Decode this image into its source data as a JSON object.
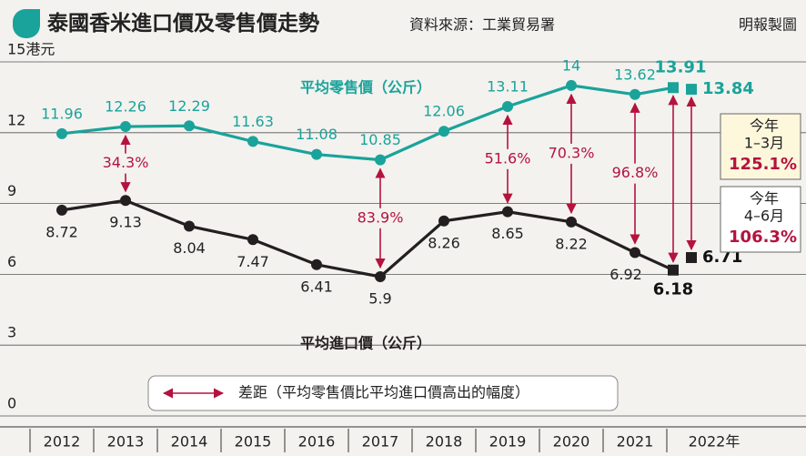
{
  "title": "泰國香米進口價及零售價走勢",
  "source": "資料來源：工業貿易署",
  "credit": "明報製圖",
  "chart_data": {
    "type": "line",
    "categories": [
      "2012",
      "2013",
      "2014",
      "2015",
      "2016",
      "2017",
      "2018",
      "2019",
      "2020",
      "2021",
      "2022年"
    ],
    "ylim": [
      0,
      15
    ],
    "yticks": [
      0,
      3,
      6,
      9,
      12,
      {
        "value": 15,
        "label": "15港元"
      }
    ],
    "series": [
      {
        "name": "平均零售價（公斤）",
        "color": "#1aa39a",
        "values": [
          11.96,
          12.26,
          12.29,
          11.63,
          11.08,
          10.85,
          12.06,
          13.11,
          14,
          13.62,
          null
        ]
      },
      {
        "name": "平均進口價（公斤）",
        "color": "#231f20",
        "values": [
          8.72,
          9.13,
          8.04,
          7.47,
          6.41,
          5.9,
          8.26,
          8.65,
          8.22,
          6.92,
          null
        ]
      }
    ],
    "gap": {
      "name": "差距（平均零售價比平均進口價高出的幅度）",
      "color": "#b5123e",
      "values": [
        null,
        34.3,
        null,
        null,
        null,
        83.9,
        null,
        51.6,
        70.3,
        96.8,
        null
      ],
      "value_labels": [
        null,
        "34.3%",
        null,
        null,
        null,
        "83.9%",
        null,
        "51.6%",
        "70.3%",
        "96.8%",
        null
      ]
    },
    "quarters": [
      {
        "lines": [
          "今年",
          "1–3月"
        ],
        "retail": 13.91,
        "import": 6.18,
        "gap": 125.1,
        "gap_label": "125.1%"
      },
      {
        "lines": [
          "今年",
          "4–6月"
        ],
        "retail": 13.84,
        "import": 6.71,
        "gap": 106.3,
        "gap_label": "106.3%"
      }
    ]
  }
}
